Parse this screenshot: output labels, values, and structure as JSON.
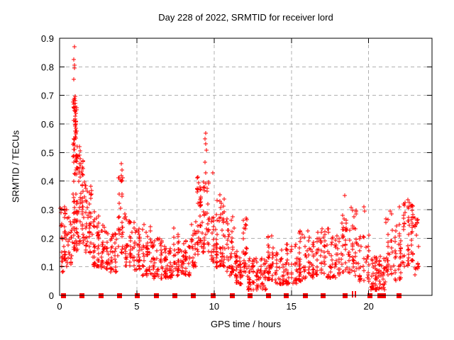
{
  "chart_data": {
    "type": "scatter",
    "title": "Day 228 of 2022, SRMTID for receiver lord",
    "xlabel": "GPS time / hours",
    "ylabel": "SRMTID / TECUs",
    "xlim": [
      0,
      24.1
    ],
    "ylim": [
      0,
      0.9
    ],
    "xtick_values": [
      0,
      5,
      10,
      15,
      20
    ],
    "xtick_labels": [
      "0",
      "5",
      "10",
      "15",
      "20"
    ],
    "ytick_values": [
      0,
      0.1,
      0.2,
      0.3,
      0.4,
      0.5,
      0.6,
      0.7,
      0.8,
      0.9
    ],
    "ytick_labels": [
      "0",
      "0.1",
      "0.2",
      "0.3",
      "0.4",
      "0.5",
      "0.6",
      "0.7",
      "0.8",
      "0.9"
    ],
    "grid": true,
    "legend": "none",
    "marker": "plus",
    "colors": {
      "points": "#ff0000",
      "grid": "#b0b0b0",
      "axis": "#000000",
      "background": "#ffffff",
      "text": "#000000"
    },
    "seed": 228,
    "series": [
      {
        "name": "SRMTID",
        "outlier_points": [
          [
            0.96,
            0.87
          ],
          [
            0.94,
            0.825
          ],
          [
            0.96,
            0.805
          ],
          [
            0.97,
            0.795
          ],
          [
            0.93,
            0.757
          ],
          [
            0.98,
            0.69
          ],
          [
            1.01,
            0.683
          ],
          [
            0.99,
            0.672
          ],
          [
            1.03,
            0.662
          ],
          [
            0.97,
            0.655
          ],
          [
            1.02,
            0.645
          ],
          [
            1.05,
            0.638
          ],
          [
            1.0,
            0.628
          ],
          [
            1.03,
            0.618
          ],
          [
            0.99,
            0.608
          ],
          [
            1.04,
            0.6
          ],
          [
            1.01,
            0.592
          ],
          [
            1.06,
            0.584
          ],
          [
            1.02,
            0.575
          ],
          [
            1.05,
            0.565
          ],
          [
            1.0,
            0.556
          ],
          [
            1.28,
            0.52
          ],
          [
            1.31,
            0.505
          ],
          [
            1.27,
            0.49
          ],
          [
            1.33,
            0.478
          ],
          [
            1.3,
            0.462
          ],
          [
            1.34,
            0.448
          ],
          [
            1.29,
            0.435
          ],
          [
            1.5,
            0.47
          ],
          [
            1.53,
            0.445
          ],
          [
            1.48,
            0.425
          ],
          [
            4.0,
            0.462
          ],
          [
            4.03,
            0.44
          ],
          [
            3.98,
            0.42
          ],
          [
            4.01,
            0.4
          ],
          [
            9.45,
            0.568
          ],
          [
            9.43,
            0.548
          ],
          [
            9.47,
            0.53
          ],
          [
            9.5,
            0.508
          ],
          [
            9.41,
            0.466
          ],
          [
            9.44,
            0.428
          ],
          [
            8.95,
            0.415
          ],
          [
            9.0,
            0.395
          ],
          [
            9.9,
            0.43
          ],
          [
            18.45,
            0.35
          ],
          [
            19.7,
            0.31
          ],
          [
            19.75,
            0.295
          ],
          [
            21.4,
            0.295
          ],
          [
            22.0,
            0.31
          ],
          [
            22.55,
            0.335
          ],
          [
            22.62,
            0.325
          ],
          [
            22.7,
            0.315
          ],
          [
            22.58,
            0.305
          ],
          [
            0.05,
            0.305
          ],
          [
            0.08,
            0.29
          ]
        ],
        "cluster_bands": [
          [
            0.02,
            0.45,
            0.08,
            0.31,
            40,
            1.5
          ],
          [
            0.45,
            0.85,
            0.1,
            0.28,
            25,
            1.5
          ],
          [
            0.85,
            1.2,
            0.15,
            0.55,
            60,
            1.2
          ],
          [
            0.88,
            1.15,
            0.4,
            0.7,
            25,
            1.0
          ],
          [
            1.2,
            1.6,
            0.18,
            0.48,
            45,
            1.3
          ],
          [
            1.6,
            2.1,
            0.14,
            0.4,
            45,
            1.5
          ],
          [
            2.1,
            2.6,
            0.1,
            0.3,
            40,
            1.5
          ],
          [
            2.6,
            3.2,
            0.09,
            0.25,
            42,
            1.5
          ],
          [
            3.2,
            3.75,
            0.08,
            0.22,
            36,
            1.5
          ],
          [
            3.75,
            4.15,
            0.12,
            0.42,
            30,
            1.2
          ],
          [
            4.15,
            4.7,
            0.1,
            0.29,
            35,
            1.5
          ],
          [
            4.7,
            5.3,
            0.09,
            0.26,
            40,
            1.5
          ],
          [
            5.3,
            6.0,
            0.07,
            0.25,
            45,
            1.6
          ],
          [
            6.0,
            6.7,
            0.06,
            0.2,
            45,
            1.5
          ],
          [
            6.7,
            7.3,
            0.06,
            0.18,
            42,
            1.5
          ],
          [
            7.3,
            7.8,
            0.07,
            0.24,
            36,
            1.5
          ],
          [
            7.8,
            8.5,
            0.07,
            0.2,
            42,
            1.5
          ],
          [
            8.5,
            8.85,
            0.1,
            0.28,
            25,
            1.4
          ],
          [
            8.85,
            9.2,
            0.14,
            0.42,
            40,
            1.1
          ],
          [
            9.2,
            9.8,
            0.15,
            0.4,
            38,
            1.3
          ],
          [
            9.8,
            10.05,
            0.12,
            0.3,
            20,
            1.4
          ],
          [
            10.05,
            10.75,
            0.1,
            0.37,
            60,
            1.4
          ],
          [
            10.75,
            11.3,
            0.07,
            0.28,
            40,
            1.5
          ],
          [
            11.3,
            11.85,
            0.04,
            0.16,
            40,
            1.5
          ],
          [
            11.85,
            12.15,
            0.08,
            0.27,
            28,
            1.3
          ],
          [
            12.15,
            13.4,
            0.02,
            0.13,
            80,
            1.4
          ],
          [
            13.4,
            13.9,
            0.05,
            0.21,
            35,
            1.4
          ],
          [
            13.9,
            14.6,
            0.04,
            0.16,
            40,
            1.5
          ],
          [
            14.6,
            15.4,
            0.04,
            0.19,
            45,
            1.5
          ],
          [
            15.4,
            16.0,
            0.05,
            0.23,
            40,
            1.5
          ],
          [
            16.0,
            16.8,
            0.06,
            0.23,
            48,
            1.5
          ],
          [
            16.8,
            17.5,
            0.06,
            0.25,
            42,
            1.4
          ],
          [
            17.5,
            18.2,
            0.06,
            0.21,
            38,
            1.5
          ],
          [
            18.2,
            18.85,
            0.08,
            0.3,
            40,
            1.3
          ],
          [
            18.85,
            19.3,
            0.07,
            0.31,
            30,
            1.4
          ],
          [
            19.3,
            20.1,
            0.05,
            0.22,
            35,
            1.6
          ],
          [
            20.1,
            21.1,
            0.02,
            0.14,
            70,
            1.4
          ],
          [
            21.1,
            21.6,
            0.07,
            0.29,
            30,
            1.3
          ],
          [
            21.6,
            22.2,
            0.05,
            0.25,
            35,
            1.5
          ],
          [
            22.2,
            22.95,
            0.1,
            0.33,
            50,
            1.2
          ],
          [
            22.95,
            23.25,
            0.07,
            0.3,
            18,
            1.4
          ]
        ]
      }
    ],
    "baseline_markers": {
      "marker": "filled-square",
      "value": 0,
      "hours": [
        0.25,
        1.42,
        2.66,
        3.86,
        5.0,
        6.24,
        7.44,
        8.64,
        9.9,
        11.15,
        12.3,
        13.5,
        14.64,
        15.88,
        17.02,
        18.45,
        20.08,
        20.7,
        20.95,
        21.94
      ],
      "thin_tick_hours": [
        18.95,
        19.15
      ]
    }
  }
}
